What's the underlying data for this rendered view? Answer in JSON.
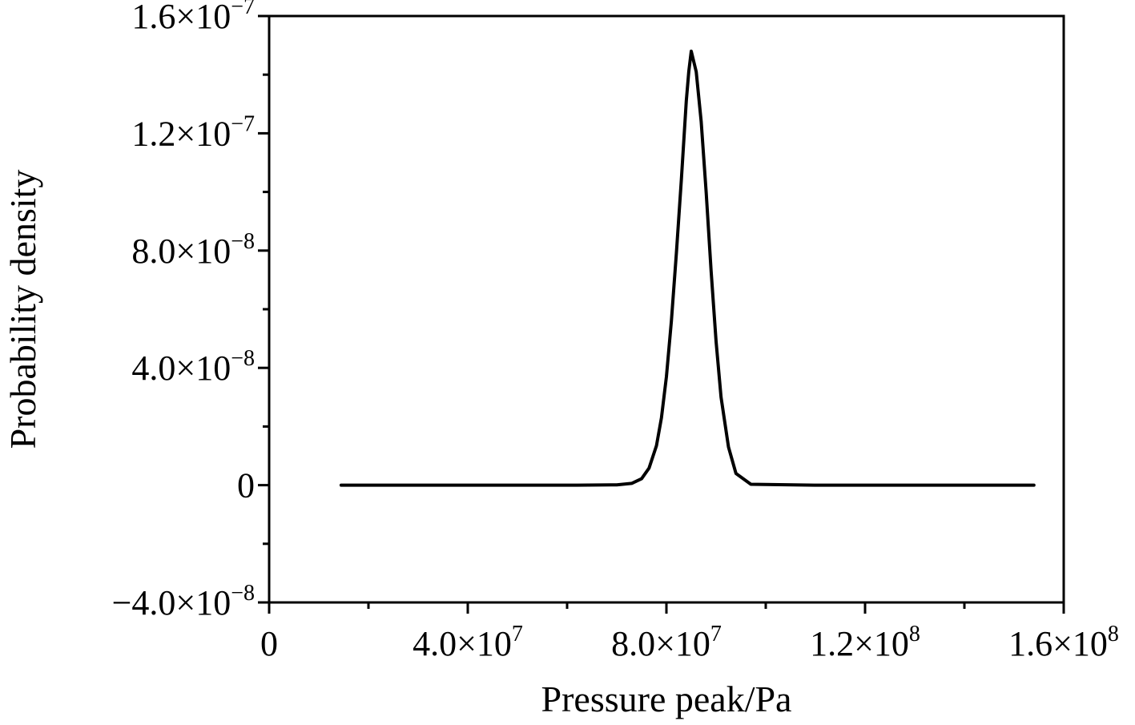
{
  "chart_data": {
    "type": "line",
    "title": "",
    "xlabel": "Pressure peak/Pa",
    "ylabel": "Probability density",
    "xlim": [
      0,
      160000000
    ],
    "ylim": [
      -4e-08,
      1.6e-07
    ],
    "grid": false,
    "legend": "none",
    "line_color": "#000000",
    "x_ticks": [
      {
        "value": 0,
        "label": "0",
        "exp": ""
      },
      {
        "value": 40000000,
        "label": "4.0×10",
        "exp": "7"
      },
      {
        "value": 80000000,
        "label": "8.0×10",
        "exp": "7"
      },
      {
        "value": 120000000,
        "label": "1.2×10",
        "exp": "8"
      },
      {
        "value": 160000000,
        "label": "1.6×10",
        "exp": "8"
      }
    ],
    "x_minor_ticks": [
      20000000,
      60000000,
      100000000,
      140000000
    ],
    "y_ticks": [
      {
        "value": -4e-08,
        "label": "−4.0×10",
        "exp": "−8"
      },
      {
        "value": 0,
        "label": "0",
        "exp": ""
      },
      {
        "value": 4e-08,
        "label": "4.0×10",
        "exp": "−8"
      },
      {
        "value": 8e-08,
        "label": "8.0×10",
        "exp": "−8"
      },
      {
        "value": 1.2e-07,
        "label": "1.2×10",
        "exp": "−7"
      },
      {
        "value": 1.6e-07,
        "label": "1.6×10",
        "exp": "−7"
      }
    ],
    "y_minor_ticks": [
      -2e-08,
      2e-08,
      6e-08,
      1e-07,
      1.4e-07
    ],
    "series": [
      {
        "x": [
          14500000,
          40000000,
          62000000,
          70000000,
          73000000,
          75000000,
          76500000,
          78000000,
          79000000,
          80000000,
          81000000,
          82000000,
          83000000,
          84000000,
          84500000,
          85000000,
          86000000,
          87000000,
          88000000,
          89000000,
          90000000,
          91000000,
          92500000,
          94000000,
          97000000,
          110000000,
          130000000,
          154000000
        ],
        "y": [
          0,
          0,
          0,
          1e-10,
          6e-10,
          2.2e-09,
          5.8e-09,
          1.35e-08,
          2.3e-08,
          3.7e-08,
          5.6e-08,
          7.9e-08,
          1.04e-07,
          1.31e-07,
          1.41e-07,
          1.48e-07,
          1.41e-07,
          1.24e-07,
          1e-07,
          7.3e-08,
          4.9e-08,
          3e-08,
          1.3e-08,
          4e-09,
          3e-10,
          0,
          0,
          0
        ]
      }
    ]
  }
}
